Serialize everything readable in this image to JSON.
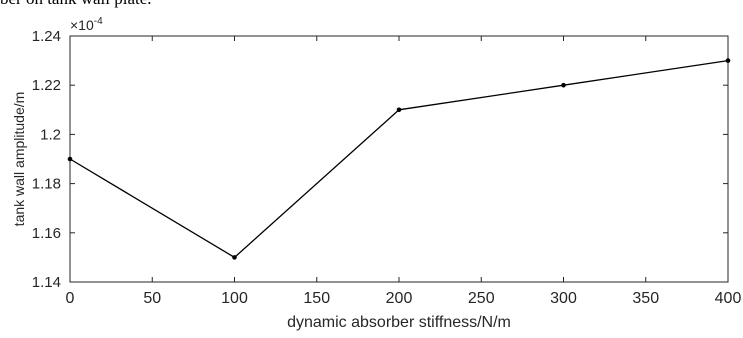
{
  "caption_fragment": "ber on tank wall plate.",
  "chart_data": {
    "type": "line",
    "title": "",
    "xlabel": "dynamic absorber stiffness/N/m",
    "ylabel": "tank wall amplitude/m",
    "y_exponent_label": "×10",
    "y_exponent_power": "-4",
    "x": [
      0,
      100,
      200,
      300,
      400
    ],
    "series": [
      {
        "values": [
          1.19,
          1.15,
          1.21,
          1.22,
          1.23
        ]
      }
    ],
    "xlim": [
      0,
      400
    ],
    "ylim": [
      1.14,
      1.24
    ],
    "xticks": [
      0,
      50,
      100,
      150,
      200,
      250,
      300,
      350,
      400
    ],
    "xtick_labels": [
      "0",
      "50",
      "100",
      "150",
      "200",
      "250",
      "300",
      "350",
      "400"
    ],
    "yticks": [
      1.14,
      1.16,
      1.18,
      1.2,
      1.22,
      1.24
    ],
    "ytick_labels": [
      "1.14",
      "1.16",
      "1.18",
      "1.2",
      "1.22",
      "1.24"
    ],
    "grid": false,
    "legend": "none",
    "line_color": "#000000",
    "axis_color": "#262626"
  }
}
